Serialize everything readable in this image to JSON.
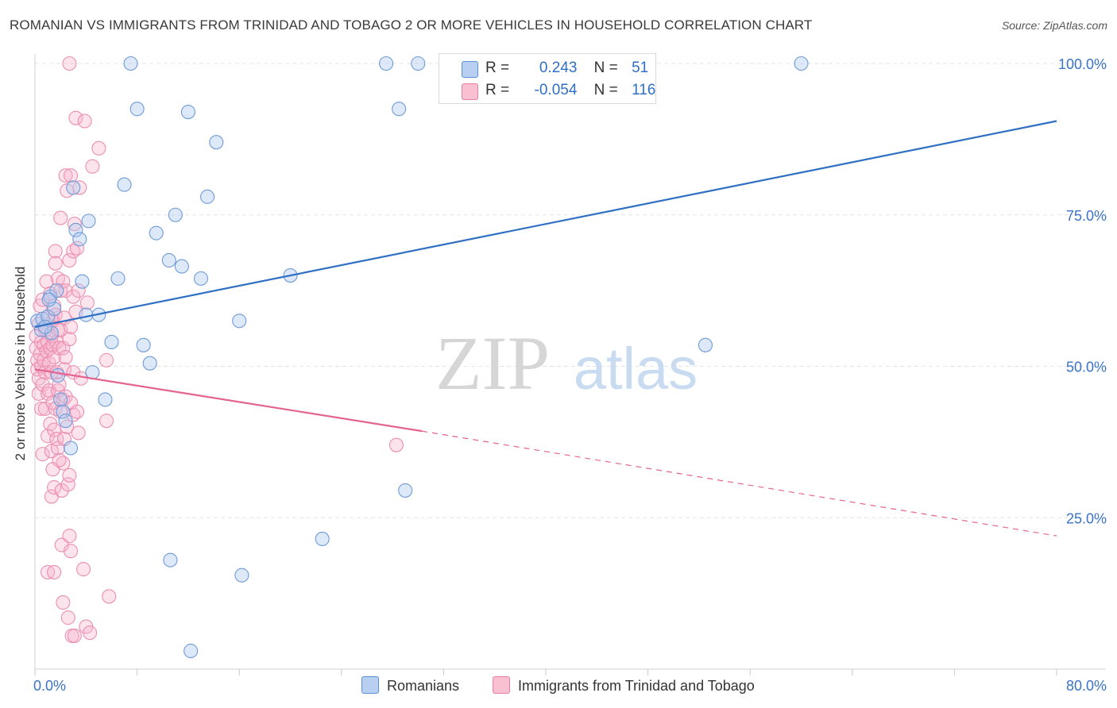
{
  "title": "ROMANIAN VS IMMIGRANTS FROM TRINIDAD AND TOBAGO 2 OR MORE VEHICLES IN HOUSEHOLD CORRELATION CHART",
  "source": "Source: ZipAtlas.com",
  "watermark": {
    "zip": "ZIP",
    "atlas": "atlas"
  },
  "legend": {
    "r_label": "R =",
    "n_label": "N =",
    "rows": [
      {
        "r": "0.243",
        "n": "51",
        "color": "#5a8fd6",
        "fill": "#b7d0f2"
      },
      {
        "r": "-0.054",
        "n": "116",
        "color": "#e77fa1",
        "fill": "#f9c0d2"
      }
    ]
  },
  "bottom_legend": {
    "romanians": "Romanians",
    "immigrants": "Immigrants from Trinidad and Tobago"
  },
  "chart_data": {
    "type": "scatter",
    "title": "ROMANIAN VS IMMIGRANTS FROM TRINIDAD AND TOBAGO 2 OR MORE VEHICLES IN HOUSEHOLD CORRELATION CHART",
    "xlabel": "",
    "ylabel": "2 or more Vehicles in Household",
    "xlim": [
      0,
      80
    ],
    "ylim": [
      0,
      100
    ],
    "x_tick_labels": [
      "0.0%",
      "80.0%"
    ],
    "y_ticks": [
      25,
      50,
      75,
      100
    ],
    "y_tick_labels": [
      "25.0%",
      "50.0%",
      "75.0%",
      "100.0%"
    ],
    "grid": true,
    "series": [
      {
        "name": "Romanians",
        "color": "#2f6fc4",
        "points": [
          [
            0.2,
            57.5
          ],
          [
            0.5,
            56
          ],
          [
            0.6,
            57.8
          ],
          [
            1.0,
            58.2
          ],
          [
            1.2,
            61.5
          ],
          [
            1.3,
            55.5
          ],
          [
            1.5,
            59.5
          ],
          [
            1.7,
            62.5
          ],
          [
            1.8,
            48.5
          ],
          [
            2.0,
            44.5
          ],
          [
            2.2,
            42.5
          ],
          [
            2.4,
            41
          ],
          [
            2.8,
            36.5
          ],
          [
            3.0,
            79.5
          ],
          [
            3.2,
            72.5
          ],
          [
            3.5,
            71
          ],
          [
            3.7,
            64
          ],
          [
            4.0,
            58.5
          ],
          [
            4.2,
            74
          ],
          [
            4.5,
            49
          ],
          [
            5.0,
            58.5
          ],
          [
            5.5,
            44.5
          ],
          [
            6.0,
            54
          ],
          [
            6.5,
            64.5
          ],
          [
            7.0,
            80
          ],
          [
            7.5,
            100
          ],
          [
            8.0,
            92.5
          ],
          [
            8.5,
            53.5
          ],
          [
            9.0,
            50.5
          ],
          [
            9.5,
            72
          ],
          [
            10.5,
            67.5
          ],
          [
            10.6,
            18
          ],
          [
            11.0,
            75
          ],
          [
            11.5,
            66.5
          ],
          [
            12.0,
            92
          ],
          [
            12.2,
            3
          ],
          [
            13.0,
            64.5
          ],
          [
            13.5,
            78
          ],
          [
            14.2,
            87
          ],
          [
            16.0,
            57.5
          ],
          [
            16.2,
            15.5
          ],
          [
            20.0,
            65
          ],
          [
            22.5,
            21.5
          ],
          [
            27.5,
            100
          ],
          [
            28.5,
            92.5
          ],
          [
            29.0,
            29.5
          ],
          [
            30.0,
            100
          ],
          [
            52.5,
            53.5
          ],
          [
            60.0,
            100
          ],
          [
            0.8,
            56.5
          ],
          [
            1.1,
            61
          ]
        ],
        "trend": {
          "x": [
            0,
            80
          ],
          "y": [
            56.5,
            90.5
          ],
          "dashed_x": [
            80,
            80
          ]
        }
      },
      {
        "name": "Immigrants from Trinidad and Tobago",
        "color": "#e4638f",
        "points": [
          [
            0.1,
            55
          ],
          [
            0.1,
            53
          ],
          [
            0.2,
            51
          ],
          [
            0.2,
            49.5
          ],
          [
            0.3,
            48
          ],
          [
            0.3,
            45.5
          ],
          [
            0.3,
            57
          ],
          [
            0.4,
            60
          ],
          [
            0.4,
            52
          ],
          [
            0.5,
            50
          ],
          [
            0.5,
            54
          ],
          [
            0.5,
            43
          ],
          [
            0.6,
            61
          ],
          [
            0.6,
            47
          ],
          [
            0.6,
            35.5
          ],
          [
            0.7,
            53.5
          ],
          [
            0.7,
            51
          ],
          [
            0.8,
            56
          ],
          [
            0.8,
            49
          ],
          [
            0.8,
            43
          ],
          [
            0.9,
            64
          ],
          [
            0.9,
            52.5
          ],
          [
            1.0,
            54
          ],
          [
            1.0,
            45.5
          ],
          [
            1.0,
            38.5
          ],
          [
            1.0,
            16
          ],
          [
            1.1,
            58
          ],
          [
            1.1,
            50.5
          ],
          [
            1.1,
            46
          ],
          [
            1.2,
            62
          ],
          [
            1.2,
            53
          ],
          [
            1.2,
            40.5
          ],
          [
            1.3,
            55
          ],
          [
            1.3,
            49
          ],
          [
            1.3,
            36
          ],
          [
            1.3,
            28.5
          ],
          [
            1.4,
            57.5
          ],
          [
            1.4,
            53.5
          ],
          [
            1.4,
            44
          ],
          [
            1.4,
            33
          ],
          [
            1.5,
            60
          ],
          [
            1.5,
            51.5
          ],
          [
            1.5,
            39.5
          ],
          [
            1.5,
            30
          ],
          [
            1.5,
            16
          ],
          [
            1.6,
            69
          ],
          [
            1.6,
            67
          ],
          [
            1.6,
            58.5
          ],
          [
            1.6,
            43
          ],
          [
            1.7,
            54
          ],
          [
            1.7,
            49
          ],
          [
            1.7,
            38
          ],
          [
            1.8,
            64.5
          ],
          [
            1.8,
            56
          ],
          [
            1.8,
            46
          ],
          [
            1.8,
            36.5
          ],
          [
            1.9,
            53
          ],
          [
            1.9,
            47
          ],
          [
            2.0,
            74.5
          ],
          [
            2.0,
            62.5
          ],
          [
            2.0,
            56
          ],
          [
            2.0,
            42.5
          ],
          [
            2.1,
            29.5
          ],
          [
            2.1,
            20.5
          ],
          [
            2.2,
            64
          ],
          [
            2.2,
            53
          ],
          [
            2.2,
            44.5
          ],
          [
            2.2,
            34
          ],
          [
            2.2,
            11
          ],
          [
            2.3,
            58
          ],
          [
            2.3,
            49.5
          ],
          [
            2.3,
            38
          ],
          [
            2.4,
            81.5
          ],
          [
            2.4,
            62.5
          ],
          [
            2.4,
            51.5
          ],
          [
            2.4,
            45
          ],
          [
            2.5,
            79
          ],
          [
            2.5,
            40
          ],
          [
            2.6,
            30.5
          ],
          [
            2.6,
            8.5
          ],
          [
            2.7,
            100
          ],
          [
            2.7,
            67.5
          ],
          [
            2.7,
            54.5
          ],
          [
            2.7,
            32
          ],
          [
            2.7,
            22
          ],
          [
            2.8,
            81.5
          ],
          [
            2.8,
            56.5
          ],
          [
            2.8,
            44
          ],
          [
            2.8,
            19.5
          ],
          [
            2.9,
            5.5
          ],
          [
            3.0,
            69
          ],
          [
            3.0,
            61.5
          ],
          [
            3.0,
            49
          ],
          [
            3.0,
            42
          ],
          [
            3.1,
            73.5
          ],
          [
            3.1,
            5.5
          ],
          [
            3.2,
            91
          ],
          [
            3.2,
            59
          ],
          [
            3.3,
            69.5
          ],
          [
            3.3,
            42.5
          ],
          [
            3.4,
            62.5
          ],
          [
            3.4,
            39
          ],
          [
            3.5,
            79.5
          ],
          [
            3.6,
            48
          ],
          [
            3.8,
            16.5
          ],
          [
            3.9,
            90.5
          ],
          [
            4.0,
            7
          ],
          [
            4.1,
            60.5
          ],
          [
            4.3,
            6
          ],
          [
            4.5,
            83
          ],
          [
            5.0,
            86
          ],
          [
            5.6,
            51
          ],
          [
            5.6,
            41
          ],
          [
            5.8,
            12
          ],
          [
            1.9,
            34.5
          ],
          [
            28.3,
            37
          ]
        ],
        "trend": {
          "x": [
            0,
            30.3
          ],
          "y": [
            49.5,
            39.3
          ],
          "dashed_x": [
            30.3,
            80
          ],
          "dashed_y": [
            39.3,
            22
          ]
        }
      }
    ]
  }
}
